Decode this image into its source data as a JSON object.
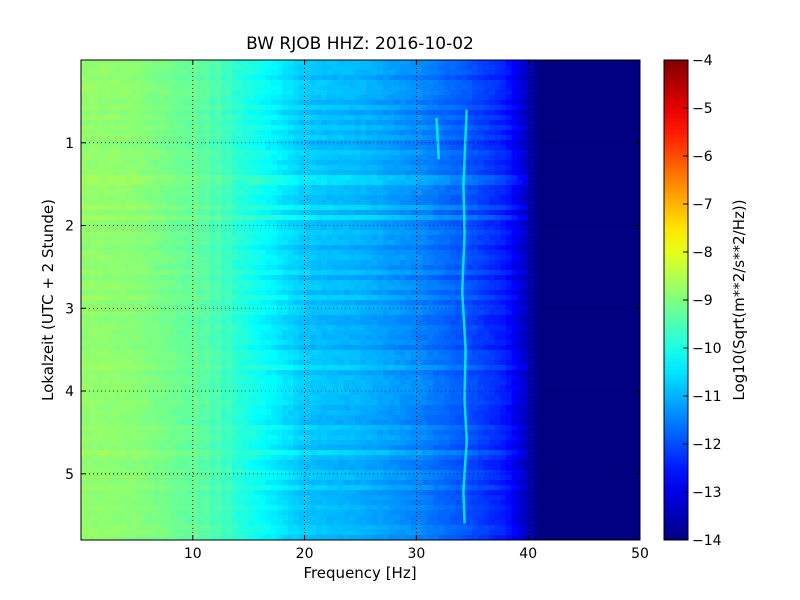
{
  "chart_data": {
    "type": "heatmap",
    "title": "BW RJOB HHZ: 2016-10-02",
    "xlabel": "Frequency [Hz]",
    "ylabel": "Lokalzeit (UTC + 2 Stunde)",
    "xlim": [
      0,
      50
    ],
    "ylim": [
      0,
      5.8
    ],
    "y_inverted": true,
    "x_ticks": [
      10,
      20,
      30,
      40,
      50
    ],
    "y_ticks": [
      1,
      2,
      3,
      4,
      5
    ],
    "grid": true,
    "colormap": "jet",
    "colorbar": {
      "label": "Log10(Sqrt(m**2/s**2/Hz))",
      "range": [
        -14,
        -4
      ],
      "ticks": [
        -4,
        -5,
        -6,
        -7,
        -8,
        -9,
        -10,
        -11,
        -12,
        -13,
        -14
      ]
    },
    "spectrum_profile": {
      "frequency_hz": [
        0,
        5,
        10,
        15,
        20,
        25,
        30,
        35,
        38,
        40,
        41,
        50
      ],
      "log10_amplitude": [
        -8.8,
        -8.9,
        -9.3,
        -10.0,
        -10.8,
        -11.0,
        -11.4,
        -12.0,
        -12.5,
        -13.4,
        -14.0,
        -14.0
      ]
    },
    "narrowband_line": {
      "frequency_hz": [
        34.5,
        34.2,
        34.3,
        34.1,
        34.4,
        34.3,
        34.5,
        34.2,
        34.3
      ],
      "time_h": [
        0.6,
        1.5,
        2.1,
        2.8,
        3.5,
        4.1,
        4.6,
        5.2,
        5.6
      ]
    },
    "secondary_line": {
      "frequency_hz": [
        31.8,
        32.0
      ],
      "time_h": [
        0.7,
        1.2
      ]
    }
  }
}
